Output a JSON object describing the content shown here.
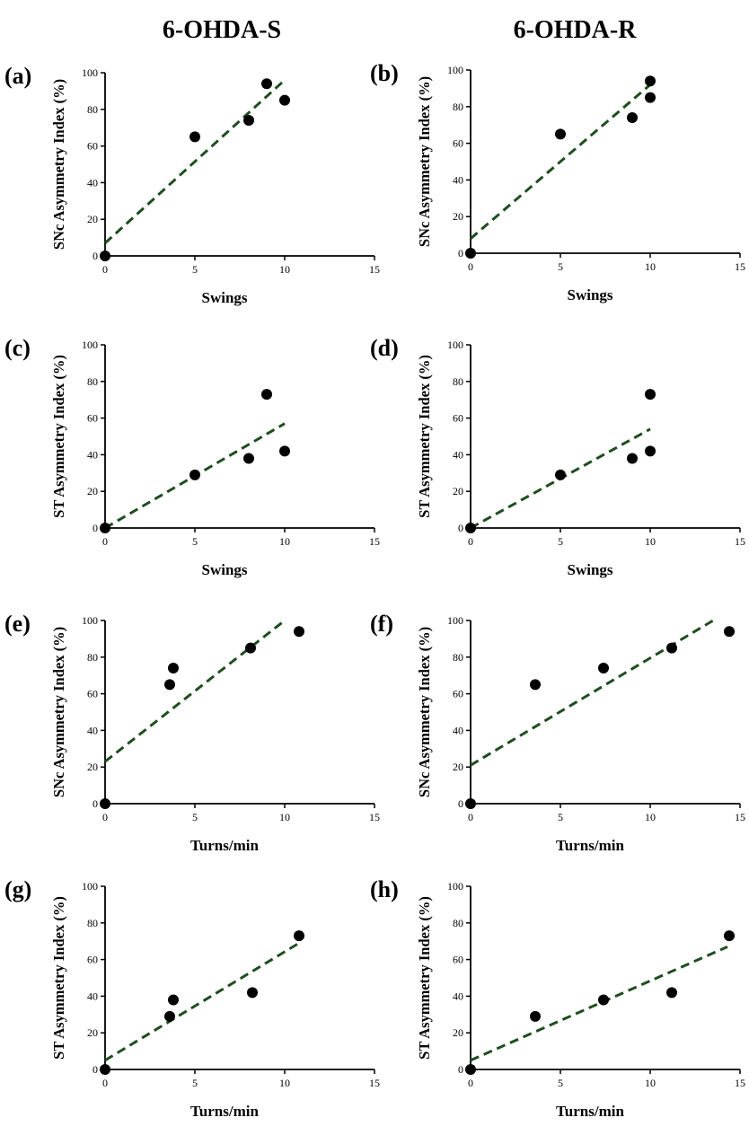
{
  "figure": {
    "column_headers": [
      "6-OHDA-S",
      "6-OHDA-R"
    ],
    "colors": {
      "points": "#000000",
      "fit_line": "#1f4d1f"
    }
  },
  "chart_data": [
    {
      "panel": "(a)",
      "type": "scatter",
      "xlabel": "Swings",
      "ylabel": "SNc Asymmetry Index (%)",
      "xlim": [
        0,
        15
      ],
      "ylim": [
        0,
        100
      ],
      "xticks": [
        0,
        5,
        10,
        15
      ],
      "yticks": [
        0,
        20,
        40,
        60,
        80,
        100
      ],
      "points": [
        {
          "x": 0,
          "y": 0
        },
        {
          "x": 5,
          "y": 65
        },
        {
          "x": 8,
          "y": 74
        },
        {
          "x": 9,
          "y": 94
        },
        {
          "x": 10,
          "y": 85
        }
      ],
      "fit": {
        "x": [
          0,
          10
        ],
        "y": [
          7,
          96
        ]
      },
      "grid": false,
      "legend": "none"
    },
    {
      "panel": "(b)",
      "type": "scatter",
      "xlabel": "Swings",
      "ylabel": "SNc Asymmetry Index (%)",
      "xlim": [
        0,
        15
      ],
      "ylim": [
        0,
        100
      ],
      "xticks": [
        0,
        5,
        10,
        15
      ],
      "yticks": [
        0,
        20,
        40,
        60,
        80,
        100
      ],
      "points": [
        {
          "x": 0,
          "y": 0
        },
        {
          "x": 5,
          "y": 65
        },
        {
          "x": 9,
          "y": 74
        },
        {
          "x": 10,
          "y": 94
        },
        {
          "x": 10,
          "y": 85
        }
      ],
      "fit": {
        "x": [
          0,
          10
        ],
        "y": [
          8,
          92
        ]
      },
      "grid": false,
      "legend": "none"
    },
    {
      "panel": "(c)",
      "type": "scatter",
      "xlabel": "Swings",
      "ylabel": "ST Asymmetry Index (%)",
      "xlim": [
        0,
        15
      ],
      "ylim": [
        0,
        100
      ],
      "xticks": [
        0,
        5,
        10,
        15
      ],
      "yticks": [
        0,
        20,
        40,
        60,
        80,
        100
      ],
      "points": [
        {
          "x": 0,
          "y": 0
        },
        {
          "x": 5,
          "y": 29
        },
        {
          "x": 8,
          "y": 38
        },
        {
          "x": 9,
          "y": 73
        },
        {
          "x": 10,
          "y": 42
        }
      ],
      "fit": {
        "x": [
          0,
          10
        ],
        "y": [
          0,
          57
        ]
      },
      "grid": false,
      "legend": "none"
    },
    {
      "panel": "(d)",
      "type": "scatter",
      "xlabel": "Swings",
      "ylabel": "ST Asymmetry Index (%)",
      "xlim": [
        0,
        15
      ],
      "ylim": [
        0,
        100
      ],
      "xticks": [
        0,
        5,
        10,
        15
      ],
      "yticks": [
        0,
        20,
        40,
        60,
        80,
        100
      ],
      "points": [
        {
          "x": 0,
          "y": 0
        },
        {
          "x": 5,
          "y": 29
        },
        {
          "x": 9,
          "y": 38
        },
        {
          "x": 10,
          "y": 73
        },
        {
          "x": 10,
          "y": 42
        }
      ],
      "fit": {
        "x": [
          0,
          10
        ],
        "y": [
          0,
          54
        ]
      },
      "grid": false,
      "legend": "none"
    },
    {
      "panel": "(e)",
      "type": "scatter",
      "xlabel": "Turns/min",
      "ylabel": "SNc Asymmetry Index (%)",
      "xlim": [
        0,
        15
      ],
      "ylim": [
        0,
        100
      ],
      "xticks": [
        0,
        5,
        10,
        15
      ],
      "yticks": [
        0,
        20,
        40,
        60,
        80,
        100
      ],
      "points": [
        {
          "x": 0,
          "y": 0
        },
        {
          "x": 3.6,
          "y": 65
        },
        {
          "x": 3.8,
          "y": 74
        },
        {
          "x": 8.1,
          "y": 85
        },
        {
          "x": 10.8,
          "y": 94
        }
      ],
      "fit": {
        "x": [
          0,
          10
        ],
        "y": [
          23,
          100
        ]
      },
      "grid": false,
      "legend": "none"
    },
    {
      "panel": "(f)",
      "type": "scatter",
      "xlabel": "Turns/min",
      "ylabel": "SNc Asymmetry Index (%)",
      "xlim": [
        0,
        15
      ],
      "ylim": [
        0,
        100
      ],
      "xticks": [
        0,
        5,
        10,
        15
      ],
      "yticks": [
        0,
        20,
        40,
        60,
        80,
        100
      ],
      "points": [
        {
          "x": 0,
          "y": 0
        },
        {
          "x": 3.6,
          "y": 65
        },
        {
          "x": 7.4,
          "y": 74
        },
        {
          "x": 11.2,
          "y": 85
        },
        {
          "x": 14.4,
          "y": 94
        }
      ],
      "fit": {
        "x": [
          0,
          13.5
        ],
        "y": [
          21,
          100
        ]
      },
      "grid": false,
      "legend": "none"
    },
    {
      "panel": "(g)",
      "type": "scatter",
      "xlabel": "Turns/min",
      "ylabel": "ST Asymmetry Index (%)",
      "xlim": [
        0,
        15
      ],
      "ylim": [
        0,
        100
      ],
      "xticks": [
        0,
        5,
        10,
        15
      ],
      "yticks": [
        0,
        20,
        40,
        60,
        80,
        100
      ],
      "points": [
        {
          "x": 0,
          "y": 0
        },
        {
          "x": 3.6,
          "y": 29
        },
        {
          "x": 3.8,
          "y": 38
        },
        {
          "x": 8.2,
          "y": 42
        },
        {
          "x": 10.8,
          "y": 73
        }
      ],
      "fit": {
        "x": [
          0,
          10.8
        ],
        "y": [
          5,
          69
        ]
      },
      "grid": false,
      "legend": "none"
    },
    {
      "panel": "(h)",
      "type": "scatter",
      "xlabel": "Turns/min",
      "ylabel": "ST Asymmetry Index (%)",
      "xlim": [
        0,
        15
      ],
      "ylim": [
        0,
        100
      ],
      "xticks": [
        0,
        5,
        10,
        15
      ],
      "yticks": [
        0,
        20,
        40,
        60,
        80,
        100
      ],
      "points": [
        {
          "x": 0,
          "y": 0
        },
        {
          "x": 3.6,
          "y": 29
        },
        {
          "x": 7.4,
          "y": 38
        },
        {
          "x": 11.2,
          "y": 42
        },
        {
          "x": 14.4,
          "y": 73
        }
      ],
      "fit": {
        "x": [
          0,
          14.3
        ],
        "y": [
          5,
          67
        ]
      },
      "grid": false,
      "legend": "none"
    }
  ]
}
